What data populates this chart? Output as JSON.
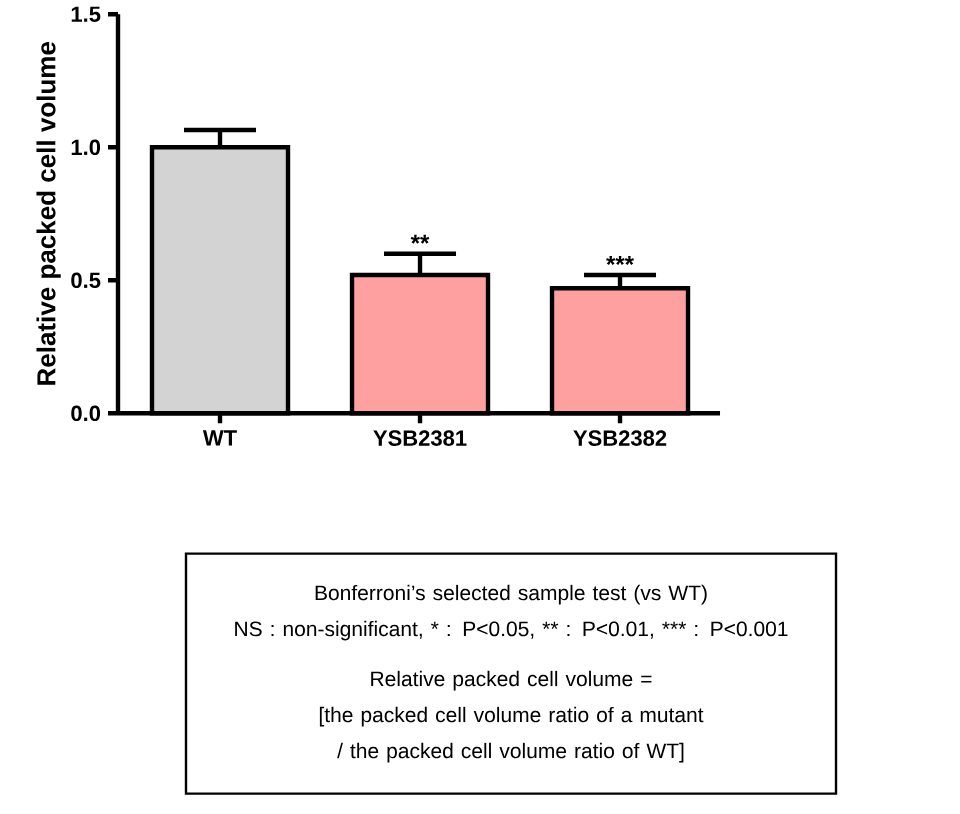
{
  "chart_data": {
    "type": "bar",
    "ylabel": "Relative packed cell volume",
    "categories": [
      "WT",
      "YSB2381",
      "YSB2382"
    ],
    "values": [
      1.0,
      0.52,
      0.47
    ],
    "errors": [
      0.065,
      0.08,
      0.05
    ],
    "colors": [
      "#d3d3d3",
      "#ffa0a0",
      "#ffa0a0"
    ],
    "ylim": [
      0,
      1.5
    ],
    "yticks": [
      {
        "value": 0,
        "label": "0.0"
      },
      {
        "value": 0.5,
        "label": "0.5"
      },
      {
        "value": 1.0,
        "label": "1.0"
      },
      {
        "value": 1.5,
        "label": "1.5"
      }
    ],
    "annotations": [
      {
        "text": "**",
        "x": "YSB2381",
        "y": 0.6
      },
      {
        "text": "***",
        "x": "YSB2382",
        "y": 0.52
      },
      "Bonferroni’s selected sample test (vs WT)",
      "NS : non-significant, * : P<0.05, ** : P<0.01, *** : P<0.001",
      "Relative packed cell volume =",
      "[the packed cell volume ratio of a mutant",
      "/ the packed cell volume ratio of WT]"
    ]
  }
}
